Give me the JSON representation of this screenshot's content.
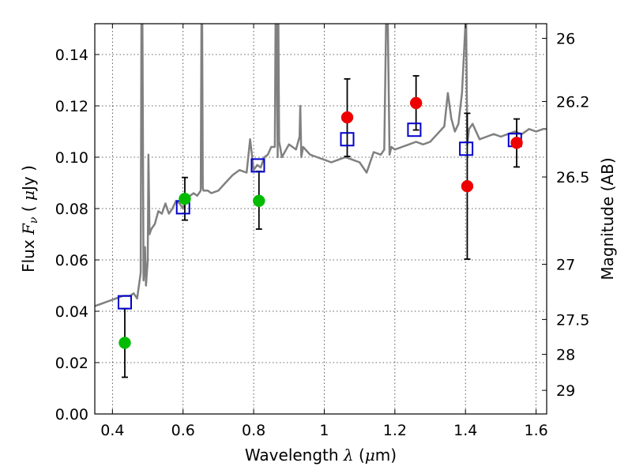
{
  "chart_data": {
    "type": "scatter",
    "xlabel": "Wavelength  λ (μm)",
    "xlabel_parts": [
      "Wavelength  ",
      "λ",
      " (",
      "μ",
      "m)"
    ],
    "ylabel_parts": [
      "Flux  ",
      "F",
      "ν",
      "  ( ",
      "μ",
      "Jy )"
    ],
    "ylabel2": "Magnitude (AB)",
    "xlim": [
      0.35,
      1.63
    ],
    "ylim": [
      0.0,
      0.152
    ],
    "xticks": [
      0.4,
      0.6,
      0.8,
      1.0,
      1.2,
      1.4,
      1.6
    ],
    "xtick_labels": [
      "0.4",
      "0.6",
      "0.8",
      "1",
      "1.2",
      "1.4",
      "1.6"
    ],
    "yticks": [
      0.0,
      0.02,
      0.04,
      0.06,
      0.08,
      0.1,
      0.12,
      0.14
    ],
    "ytick_labels": [
      "0.00",
      "0.02",
      "0.04",
      "0.06",
      "0.08",
      "0.10",
      "0.12",
      "0.14"
    ],
    "right_ticks": [
      {
        "label": "26",
        "flux": 0.1463
      },
      {
        "label": "26.2",
        "flux": 0.1217
      },
      {
        "label": "26.5",
        "flux": 0.0923
      },
      {
        "label": "27",
        "flux": 0.0583
      },
      {
        "label": "27.5",
        "flux": 0.0368
      },
      {
        "label": "28",
        "flux": 0.0232
      },
      {
        "label": "29",
        "flux": 0.0092
      }
    ],
    "grid": true,
    "series": [
      {
        "kind": "line",
        "color": "#808080",
        "x": [
          0.35,
          0.37,
          0.39,
          0.41,
          0.43,
          0.45,
          0.46,
          0.47,
          0.48,
          0.482,
          0.485,
          0.488,
          0.49,
          0.492,
          0.495,
          0.5,
          0.502,
          0.505,
          0.51,
          0.52,
          0.53,
          0.54,
          0.55,
          0.56,
          0.57,
          0.58,
          0.59,
          0.6,
          0.61,
          0.62,
          0.63,
          0.64,
          0.65,
          0.652,
          0.654,
          0.656,
          0.658,
          0.66,
          0.67,
          0.68,
          0.7,
          0.72,
          0.74,
          0.76,
          0.78,
          0.79,
          0.8,
          0.81,
          0.82,
          0.83,
          0.84,
          0.85,
          0.86,
          0.862,
          0.865,
          0.868,
          0.87,
          0.872,
          0.875,
          0.88,
          0.9,
          0.92,
          0.93,
          0.932,
          0.935,
          0.94,
          0.96,
          0.98,
          1.0,
          1.02,
          1.04,
          1.06,
          1.08,
          1.1,
          1.12,
          1.14,
          1.16,
          1.17,
          1.175,
          1.18,
          1.185,
          1.19,
          1.2,
          1.22,
          1.24,
          1.26,
          1.28,
          1.3,
          1.32,
          1.34,
          1.35,
          1.36,
          1.37,
          1.38,
          1.39,
          1.4,
          1.402,
          1.405,
          1.41,
          1.42,
          1.44,
          1.46,
          1.48,
          1.5,
          1.52,
          1.54,
          1.56,
          1.58,
          1.6,
          1.62,
          1.63
        ],
        "y": [
          0.042,
          0.043,
          0.044,
          0.045,
          0.046,
          0.046,
          0.047,
          0.045,
          0.055,
          0.152,
          0.152,
          0.052,
          0.058,
          0.065,
          0.05,
          0.06,
          0.101,
          0.07,
          0.072,
          0.074,
          0.079,
          0.078,
          0.082,
          0.078,
          0.08,
          0.083,
          0.082,
          0.08,
          0.083,
          0.085,
          0.086,
          0.085,
          0.087,
          0.152,
          0.152,
          0.088,
          0.087,
          0.087,
          0.087,
          0.086,
          0.087,
          0.09,
          0.093,
          0.095,
          0.094,
          0.107,
          0.095,
          0.097,
          0.096,
          0.1,
          0.101,
          0.104,
          0.104,
          0.152,
          0.152,
          0.1,
          0.152,
          0.106,
          0.104,
          0.1,
          0.105,
          0.103,
          0.108,
          0.12,
          0.1,
          0.104,
          0.101,
          0.1,
          0.099,
          0.098,
          0.099,
          0.1,
          0.099,
          0.098,
          0.094,
          0.102,
          0.101,
          0.103,
          0.152,
          0.152,
          0.101,
          0.104,
          0.103,
          0.104,
          0.105,
          0.106,
          0.105,
          0.106,
          0.109,
          0.112,
          0.125,
          0.115,
          0.11,
          0.113,
          0.125,
          0.152,
          0.152,
          0.105,
          0.111,
          0.113,
          0.107,
          0.108,
          0.109,
          0.108,
          0.109,
          0.11,
          0.109,
          0.111,
          0.11,
          0.111,
          0.111
        ]
      },
      {
        "kind": "open-square",
        "color": "#0000cc",
        "points": [
          {
            "x": 0.435,
            "y": 0.0435
          },
          {
            "x": 0.6,
            "y": 0.0805
          },
          {
            "x": 0.812,
            "y": 0.0968
          },
          {
            "x": 1.065,
            "y": 0.107
          },
          {
            "x": 1.255,
            "y": 0.1107
          },
          {
            "x": 1.402,
            "y": 0.1033
          },
          {
            "x": 1.54,
            "y": 0.1067
          }
        ]
      },
      {
        "kind": "filled-circle",
        "color": "#00bb00",
        "points": [
          {
            "x": 0.435,
            "y": 0.0277,
            "err": [
              0.0143,
              0.041
            ]
          },
          {
            "x": 0.605,
            "y": 0.0838,
            "err": [
              0.0755,
              0.0921
            ]
          },
          {
            "x": 0.815,
            "y": 0.083,
            "err": [
              0.072,
              0.0945
            ]
          }
        ]
      },
      {
        "kind": "filled-circle",
        "color": "#ee0000",
        "points": [
          {
            "x": 1.065,
            "y": 0.1155,
            "err": [
              0.1003,
              0.1305
            ]
          },
          {
            "x": 1.26,
            "y": 0.1211,
            "err": [
              0.1106,
              0.1317
            ]
          },
          {
            "x": 1.405,
            "y": 0.0887,
            "err": [
              0.0603,
              0.1171
            ]
          },
          {
            "x": 1.545,
            "y": 0.1056,
            "err": [
              0.0962,
              0.1149
            ]
          }
        ]
      }
    ]
  }
}
